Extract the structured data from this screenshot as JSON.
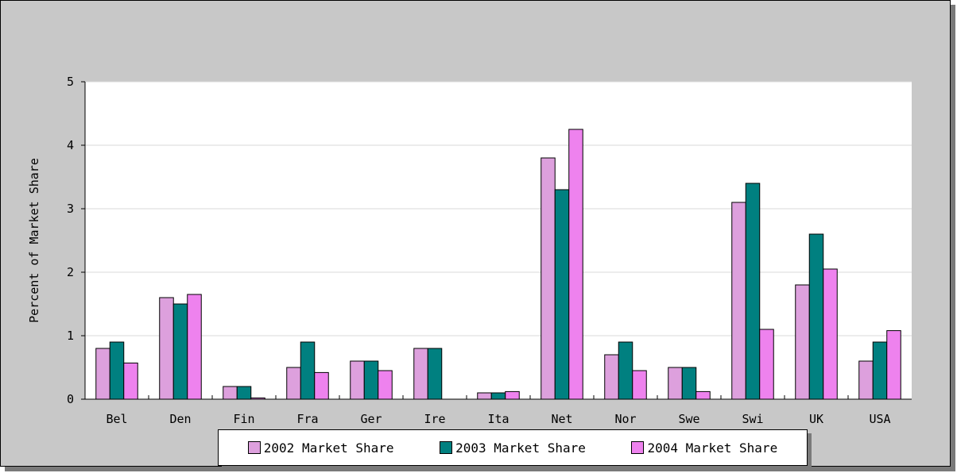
{
  "chart_data": {
    "type": "bar",
    "title": "",
    "xlabel": "",
    "ylabel": "Percent of Market Share",
    "ylim": [
      0,
      5
    ],
    "yticks": [
      0,
      1,
      2,
      3,
      4,
      5
    ],
    "grid": true,
    "legend_placement": "bottom",
    "categories": [
      "Bel",
      "Den",
      "Fin",
      "Fra",
      "Ger",
      "Ire",
      "Ita",
      "Net",
      "Nor",
      "Swe",
      "Swi",
      "UK",
      "USA"
    ],
    "series": [
      {
        "name": "2002 Market Share",
        "color": "#dda0dd",
        "values": [
          0.8,
          1.6,
          0.2,
          0.5,
          0.6,
          0.8,
          0.1,
          3.8,
          0.7,
          0.5,
          3.1,
          1.8,
          0.6
        ]
      },
      {
        "name": "2003 Market Share",
        "color": "#008080",
        "values": [
          0.9,
          1.5,
          0.2,
          0.9,
          0.6,
          0.8,
          0.1,
          3.3,
          0.9,
          0.5,
          3.4,
          2.6,
          0.9
        ]
      },
      {
        "name": "2004 Market Share",
        "color": "#ee82ee",
        "values": [
          0.57,
          1.65,
          0.02,
          0.42,
          0.45,
          0.0,
          0.12,
          4.25,
          0.45,
          0.12,
          1.1,
          2.05,
          1.08
        ]
      }
    ]
  }
}
